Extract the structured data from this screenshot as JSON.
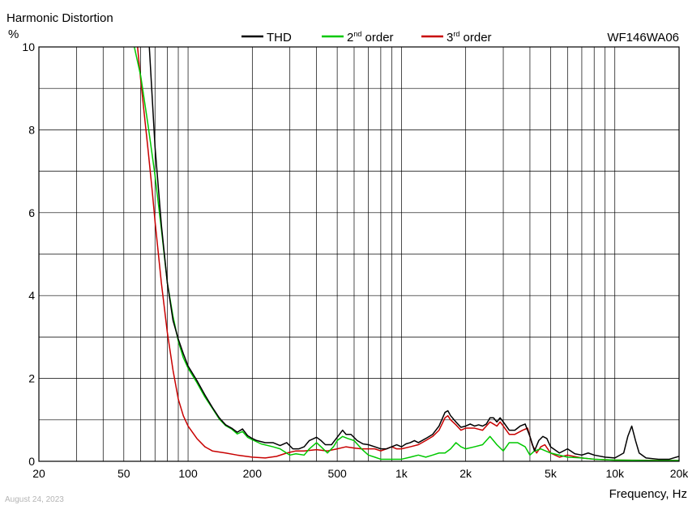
{
  "chart_data": {
    "type": "line",
    "title": "Harmonic Distortion",
    "model": "WF146WA06",
    "xlabel": "Frequency, Hz",
    "ylabel": "%",
    "x_scale": "log",
    "xlim": [
      20,
      20000
    ],
    "ylim": [
      0,
      10
    ],
    "x_ticks": [
      20,
      50,
      100,
      200,
      500,
      1000,
      2000,
      5000,
      10000,
      20000
    ],
    "x_tick_labels": [
      "20",
      "50",
      "100",
      "200",
      "500",
      "1k",
      "2k",
      "5k",
      "10k",
      "20k"
    ],
    "y_ticks": [
      0,
      2,
      4,
      6,
      8,
      10
    ],
    "y_tick_labels": [
      "0",
      "2",
      "4",
      "6",
      "8",
      "10"
    ],
    "grid": true,
    "legend_position": "top-center",
    "series": [
      {
        "name": "THD",
        "sup": "",
        "suffix": "",
        "color": "#000000",
        "points": [
          [
            60,
            10
          ],
          [
            65,
            10.5
          ],
          [
            70,
            7.6
          ],
          [
            75,
            5.7
          ],
          [
            80,
            4.3
          ],
          [
            85,
            3.4
          ],
          [
            90,
            2.95
          ],
          [
            95,
            2.6
          ],
          [
            100,
            2.3
          ],
          [
            110,
            1.95
          ],
          [
            120,
            1.6
          ],
          [
            130,
            1.3
          ],
          [
            140,
            1.05
          ],
          [
            150,
            0.88
          ],
          [
            160,
            0.8
          ],
          [
            170,
            0.7
          ],
          [
            180,
            0.78
          ],
          [
            190,
            0.62
          ],
          [
            200,
            0.55
          ],
          [
            210,
            0.5
          ],
          [
            230,
            0.45
          ],
          [
            250,
            0.45
          ],
          [
            270,
            0.38
          ],
          [
            290,
            0.45
          ],
          [
            310,
            0.3
          ],
          [
            330,
            0.3
          ],
          [
            350,
            0.35
          ],
          [
            370,
            0.5
          ],
          [
            400,
            0.58
          ],
          [
            420,
            0.5
          ],
          [
            440,
            0.4
          ],
          [
            470,
            0.4
          ],
          [
            500,
            0.58
          ],
          [
            530,
            0.75
          ],
          [
            550,
            0.65
          ],
          [
            580,
            0.65
          ],
          [
            620,
            0.5
          ],
          [
            660,
            0.42
          ],
          [
            700,
            0.4
          ],
          [
            750,
            0.35
          ],
          [
            800,
            0.3
          ],
          [
            850,
            0.3
          ],
          [
            900,
            0.35
          ],
          [
            950,
            0.4
          ],
          [
            1000,
            0.35
          ],
          [
            1050,
            0.42
          ],
          [
            1100,
            0.45
          ],
          [
            1150,
            0.5
          ],
          [
            1200,
            0.45
          ],
          [
            1300,
            0.55
          ],
          [
            1400,
            0.65
          ],
          [
            1500,
            0.85
          ],
          [
            1600,
            1.18
          ],
          [
            1650,
            1.22
          ],
          [
            1700,
            1.1
          ],
          [
            1800,
            0.95
          ],
          [
            1900,
            0.82
          ],
          [
            2000,
            0.85
          ],
          [
            2100,
            0.9
          ],
          [
            2200,
            0.85
          ],
          [
            2300,
            0.88
          ],
          [
            2400,
            0.85
          ],
          [
            2500,
            0.9
          ],
          [
            2600,
            1.05
          ],
          [
            2700,
            1.05
          ],
          [
            2800,
            0.95
          ],
          [
            2900,
            1.05
          ],
          [
            3000,
            0.95
          ],
          [
            3200,
            0.75
          ],
          [
            3400,
            0.75
          ],
          [
            3600,
            0.85
          ],
          [
            3800,
            0.9
          ],
          [
            4000,
            0.6
          ],
          [
            4200,
            0.25
          ],
          [
            4400,
            0.5
          ],
          [
            4600,
            0.6
          ],
          [
            4800,
            0.55
          ],
          [
            5000,
            0.35
          ],
          [
            5500,
            0.2
          ],
          [
            6000,
            0.3
          ],
          [
            6500,
            0.18
          ],
          [
            7000,
            0.15
          ],
          [
            7500,
            0.2
          ],
          [
            8000,
            0.15
          ],
          [
            9000,
            0.1
          ],
          [
            10000,
            0.08
          ],
          [
            11000,
            0.2
          ],
          [
            11500,
            0.6
          ],
          [
            12000,
            0.85
          ],
          [
            12500,
            0.5
          ],
          [
            13000,
            0.2
          ],
          [
            14000,
            0.08
          ],
          [
            16000,
            0.05
          ],
          [
            18000,
            0.05
          ],
          [
            20000,
            0.12
          ]
        ]
      },
      {
        "name": "2",
        "sup": "nd",
        "suffix": " order",
        "color": "#00c800",
        "points": [
          [
            56,
            10
          ],
          [
            60,
            9.3
          ],
          [
            65,
            8.1
          ],
          [
            70,
            6.9
          ],
          [
            75,
            5.6
          ],
          [
            80,
            4.3
          ],
          [
            85,
            3.5
          ],
          [
            90,
            2.9
          ],
          [
            95,
            2.5
          ],
          [
            100,
            2.25
          ],
          [
            110,
            1.9
          ],
          [
            120,
            1.55
          ],
          [
            130,
            1.28
          ],
          [
            140,
            1.02
          ],
          [
            150,
            0.86
          ],
          [
            160,
            0.78
          ],
          [
            170,
            0.66
          ],
          [
            180,
            0.72
          ],
          [
            190,
            0.58
          ],
          [
            200,
            0.52
          ],
          [
            220,
            0.42
          ],
          [
            250,
            0.35
          ],
          [
            270,
            0.3
          ],
          [
            300,
            0.15
          ],
          [
            320,
            0.18
          ],
          [
            350,
            0.15
          ],
          [
            370,
            0.3
          ],
          [
            400,
            0.45
          ],
          [
            420,
            0.35
          ],
          [
            450,
            0.2
          ],
          [
            480,
            0.35
          ],
          [
            500,
            0.5
          ],
          [
            530,
            0.6
          ],
          [
            560,
            0.55
          ],
          [
            600,
            0.5
          ],
          [
            650,
            0.3
          ],
          [
            700,
            0.15
          ],
          [
            750,
            0.1
          ],
          [
            800,
            0.05
          ],
          [
            900,
            0.05
          ],
          [
            1000,
            0.05
          ],
          [
            1100,
            0.1
          ],
          [
            1200,
            0.15
          ],
          [
            1300,
            0.1
          ],
          [
            1400,
            0.15
          ],
          [
            1500,
            0.2
          ],
          [
            1600,
            0.2
          ],
          [
            1700,
            0.3
          ],
          [
            1800,
            0.45
          ],
          [
            1900,
            0.35
          ],
          [
            2000,
            0.3
          ],
          [
            2200,
            0.35
          ],
          [
            2400,
            0.4
          ],
          [
            2600,
            0.6
          ],
          [
            2800,
            0.4
          ],
          [
            3000,
            0.25
          ],
          [
            3200,
            0.45
          ],
          [
            3500,
            0.45
          ],
          [
            3800,
            0.35
          ],
          [
            4000,
            0.15
          ],
          [
            4200,
            0.25
          ],
          [
            4500,
            0.3
          ],
          [
            5000,
            0.2
          ],
          [
            6000,
            0.1
          ],
          [
            7000,
            0.08
          ],
          [
            8000,
            0.05
          ],
          [
            10000,
            0.03
          ],
          [
            14000,
            0.02
          ],
          [
            20000,
            0.02
          ]
        ]
      },
      {
        "name": "3",
        "sup": "rd",
        "suffix": " order",
        "color": "#c80000",
        "points": [
          [
            58,
            10
          ],
          [
            60,
            9.2
          ],
          [
            62,
            8.5
          ],
          [
            65,
            7.5
          ],
          [
            68,
            6.5
          ],
          [
            70,
            5.8
          ],
          [
            75,
            4.3
          ],
          [
            80,
            3.1
          ],
          [
            85,
            2.2
          ],
          [
            90,
            1.5
          ],
          [
            95,
            1.1
          ],
          [
            100,
            0.85
          ],
          [
            110,
            0.55
          ],
          [
            120,
            0.35
          ],
          [
            130,
            0.25
          ],
          [
            150,
            0.2
          ],
          [
            170,
            0.15
          ],
          [
            200,
            0.1
          ],
          [
            230,
            0.08
          ],
          [
            260,
            0.12
          ],
          [
            290,
            0.2
          ],
          [
            320,
            0.25
          ],
          [
            350,
            0.25
          ],
          [
            400,
            0.28
          ],
          [
            450,
            0.25
          ],
          [
            500,
            0.3
          ],
          [
            550,
            0.35
          ],
          [
            600,
            0.32
          ],
          [
            650,
            0.3
          ],
          [
            700,
            0.3
          ],
          [
            750,
            0.3
          ],
          [
            800,
            0.25
          ],
          [
            850,
            0.3
          ],
          [
            900,
            0.35
          ],
          [
            950,
            0.3
          ],
          [
            1000,
            0.3
          ],
          [
            1100,
            0.35
          ],
          [
            1200,
            0.4
          ],
          [
            1300,
            0.5
          ],
          [
            1400,
            0.6
          ],
          [
            1500,
            0.75
          ],
          [
            1600,
            1.05
          ],
          [
            1650,
            1.1
          ],
          [
            1700,
            1.0
          ],
          [
            1800,
            0.88
          ],
          [
            1900,
            0.75
          ],
          [
            2000,
            0.8
          ],
          [
            2200,
            0.8
          ],
          [
            2400,
            0.75
          ],
          [
            2600,
            0.95
          ],
          [
            2700,
            0.9
          ],
          [
            2800,
            0.85
          ],
          [
            2900,
            0.95
          ],
          [
            3000,
            0.85
          ],
          [
            3200,
            0.65
          ],
          [
            3400,
            0.65
          ],
          [
            3700,
            0.75
          ],
          [
            3900,
            0.8
          ],
          [
            4100,
            0.4
          ],
          [
            4300,
            0.2
          ],
          [
            4500,
            0.35
          ],
          [
            4700,
            0.4
          ],
          [
            5000,
            0.2
          ],
          [
            5500,
            0.1
          ],
          [
            6000,
            0.15
          ],
          [
            7000,
            0.08
          ],
          [
            8000,
            0.05
          ],
          [
            10000,
            0.03
          ],
          [
            20000,
            0.02
          ]
        ]
      }
    ]
  },
  "footer": {
    "date": "August 24, 2023"
  }
}
